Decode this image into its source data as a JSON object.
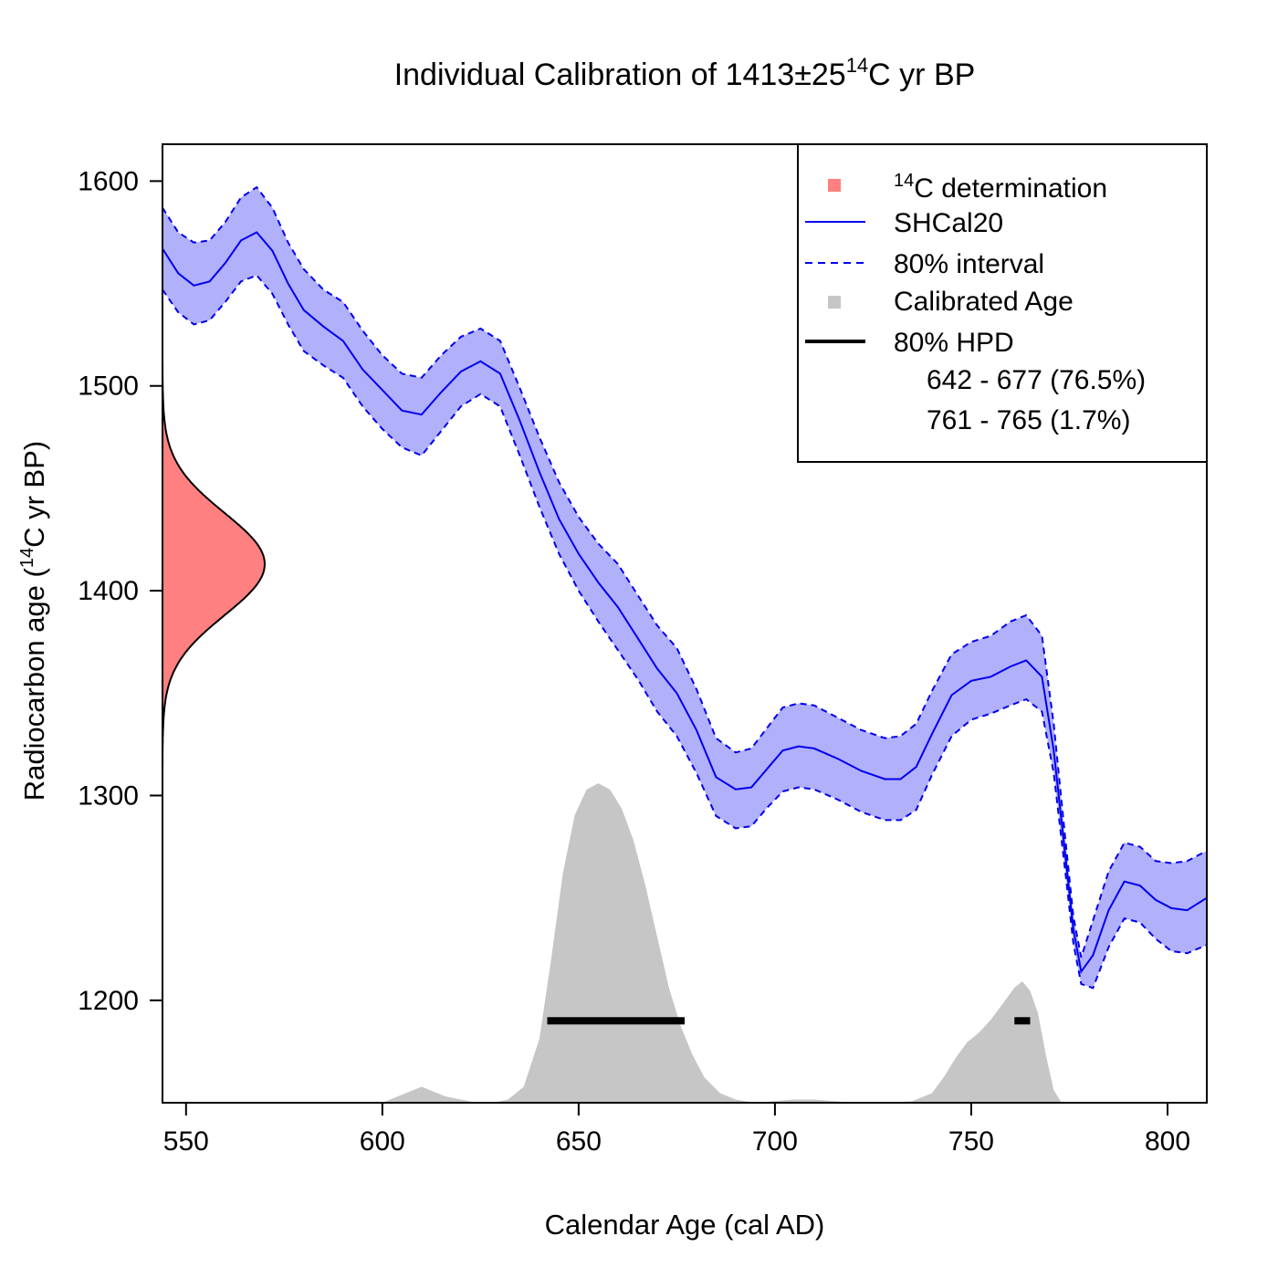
{
  "chart_data": {
    "type": "line",
    "title": {
      "prefix": "Individual Calibration of 1413±25",
      "superscript": "14",
      "suffix": "C yr BP"
    },
    "xlabel": "Calendar Age (cal AD)",
    "ylabel": {
      "prefix": "Radiocarbon age (",
      "superscript": "14",
      "suffix": "C yr BP)"
    },
    "xlim": [
      544,
      810
    ],
    "ylim": [
      1150,
      1618
    ],
    "x_ticks": [
      550,
      600,
      650,
      700,
      750,
      800
    ],
    "y_ticks": [
      1200,
      1300,
      1400,
      1500,
      1600
    ],
    "grid": false,
    "legend_position": "top-right",
    "legend": {
      "determination": {
        "superscript": "14",
        "label": "C determination"
      },
      "curve_label": "SHCal20",
      "interval_label": "80% interval",
      "calibrated_label": "Calibrated Age",
      "hpd_label": "80% HPD",
      "hpd_ranges": [
        "642 - 677 (76.5%)",
        "761 - 765 (1.7%)"
      ]
    },
    "colors": {
      "determination": "#ff8080",
      "curve": "#0000ee",
      "band": "#b0b0fb",
      "calibrated": "#c6c6c6",
      "hpd": "#000000"
    },
    "determination": {
      "mean": 1413,
      "sd": 25
    },
    "calibration_curve": {
      "name": "SHCal20",
      "x": [
        544,
        548,
        552,
        556,
        560,
        564,
        568,
        572,
        576,
        580,
        585,
        590,
        595,
        600,
        605,
        610,
        615,
        620,
        625,
        630,
        635,
        640,
        645,
        650,
        655,
        660,
        665,
        670,
        675,
        680,
        685,
        690,
        694,
        698,
        702,
        706,
        710,
        716,
        722,
        728,
        732,
        736,
        740,
        745,
        750,
        755,
        760,
        764,
        768,
        771,
        774,
        776,
        778,
        781,
        785,
        789,
        793,
        797,
        801,
        805,
        810
      ],
      "mid": [
        1567,
        1555,
        1549,
        1551,
        1560,
        1571,
        1575,
        1566,
        1550,
        1537,
        1529,
        1522,
        1508,
        1498,
        1488,
        1486,
        1497,
        1507,
        1512,
        1506,
        1483,
        1458,
        1435,
        1418,
        1404,
        1392,
        1377,
        1362,
        1350,
        1332,
        1309,
        1303,
        1304,
        1313,
        1322,
        1324,
        1323,
        1318,
        1312,
        1308,
        1308,
        1314,
        1330,
        1349,
        1356,
        1358,
        1363,
        1366,
        1358,
        1322,
        1270,
        1235,
        1214,
        1222,
        1244,
        1258,
        1256,
        1249,
        1245,
        1244,
        1250
      ],
      "upper": [
        1587,
        1575,
        1570,
        1571,
        1580,
        1592,
        1597,
        1587,
        1570,
        1557,
        1547,
        1541,
        1527,
        1515,
        1506,
        1504,
        1515,
        1524,
        1528,
        1522,
        1499,
        1475,
        1453,
        1436,
        1423,
        1413,
        1398,
        1383,
        1372,
        1352,
        1328,
        1321,
        1323,
        1333,
        1343,
        1345,
        1344,
        1338,
        1332,
        1328,
        1329,
        1335,
        1351,
        1369,
        1375,
        1378,
        1385,
        1388,
        1378,
        1335,
        1278,
        1241,
        1221,
        1239,
        1263,
        1277,
        1275,
        1268,
        1267,
        1268,
        1273
      ],
      "lower": [
        1547,
        1536,
        1530,
        1532,
        1541,
        1551,
        1554,
        1545,
        1530,
        1517,
        1510,
        1504,
        1490,
        1479,
        1470,
        1466,
        1478,
        1490,
        1496,
        1490,
        1466,
        1441,
        1418,
        1400,
        1385,
        1371,
        1357,
        1341,
        1329,
        1311,
        1290,
        1284,
        1285,
        1294,
        1302,
        1304,
        1303,
        1298,
        1292,
        1288,
        1288,
        1293,
        1310,
        1329,
        1337,
        1340,
        1344,
        1347,
        1341,
        1311,
        1262,
        1228,
        1208,
        1206,
        1226,
        1240,
        1238,
        1230,
        1224,
        1223,
        1227
      ]
    },
    "calibrated_density": {
      "x": [
        600,
        604,
        608,
        610,
        612,
        616,
        620,
        624,
        628,
        632,
        636,
        640,
        643,
        646,
        649,
        652,
        655,
        658,
        661,
        664,
        667,
        670,
        673,
        676,
        679,
        682,
        686,
        690,
        695,
        700,
        705,
        710,
        715,
        720,
        725,
        730,
        735,
        740,
        743,
        746,
        749,
        752,
        755,
        758,
        761,
        763,
        765,
        767,
        769,
        771,
        773
      ],
      "density": [
        0,
        0.02,
        0.04,
        0.05,
        0.04,
        0.02,
        0.01,
        0,
        0,
        0.01,
        0.05,
        0.2,
        0.45,
        0.72,
        0.9,
        0.98,
        1.0,
        0.98,
        0.92,
        0.82,
        0.68,
        0.52,
        0.36,
        0.24,
        0.15,
        0.08,
        0.03,
        0.01,
        0,
        0.005,
        0.01,
        0.01,
        0.005,
        0,
        0,
        0,
        0.005,
        0.03,
        0.08,
        0.14,
        0.19,
        0.22,
        0.26,
        0.31,
        0.36,
        0.38,
        0.35,
        0.28,
        0.15,
        0.04,
        0
      ],
      "peak_height_14C": 156
    },
    "hpd_intervals": [
      {
        "from": 642,
        "to": 677,
        "prob": 76.5
      },
      {
        "from": 761,
        "to": 765,
        "prob": 1.7
      }
    ]
  }
}
